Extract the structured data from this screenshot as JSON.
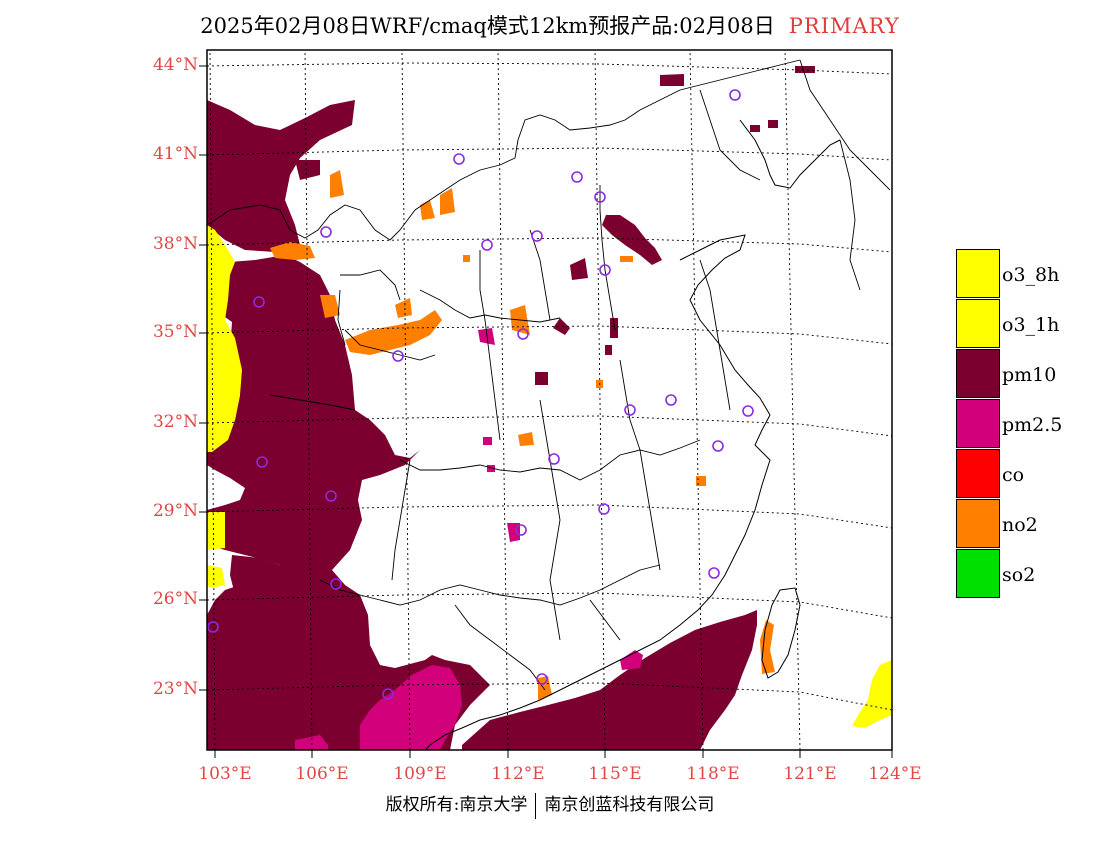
{
  "title": {
    "main": "2025年02月08日WRF/cmaq模式12km预报产品:02月08日",
    "tag": "PRIMARY"
  },
  "lat_labels": [
    "44°N",
    "41°N",
    "38°N",
    "35°N",
    "32°N",
    "29°N",
    "26°N",
    "23°N"
  ],
  "lon_labels": [
    "103°E",
    "106°E",
    "109°E",
    "112°E",
    "115°E",
    "118°E",
    "121°E",
    "124°E"
  ],
  "legend": [
    {
      "label": "o3_8h",
      "color": "#ffff00"
    },
    {
      "label": "o3_1h",
      "color": "#ffff00"
    },
    {
      "label": "pm10",
      "color": "#7b0030"
    },
    {
      "label": "pm2.5",
      "color": "#d2007a"
    },
    {
      "label": "co",
      "color": "#ff0000"
    },
    {
      "label": "no2",
      "color": "#ff8000"
    },
    {
      "label": "so2",
      "color": "#00e000"
    }
  ],
  "footer": {
    "left": "版权所有:南京大学",
    "right": "南京创蓝科技有限公司"
  },
  "colors": {
    "pm10": "#7b0030",
    "pm25": "#d2007a",
    "no2": "#ff8000",
    "o3": "#ffff00",
    "station": "#8a2be2",
    "axis_label": "#e04848",
    "title_tag": "#e03c3c"
  }
}
